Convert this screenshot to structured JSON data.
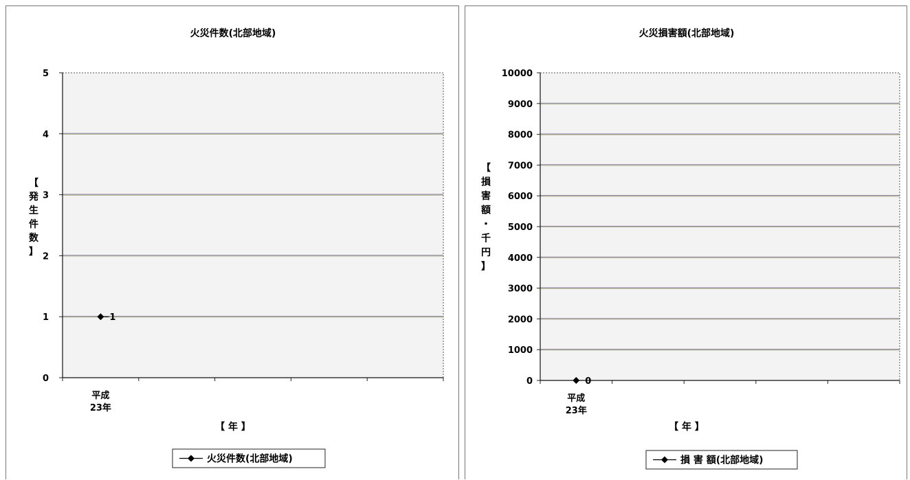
{
  "chart_data": [
    {
      "type": "line",
      "title": "火災件数(北部地域)",
      "ylabel_chars": [
        "【",
        "発",
        "生",
        "件",
        "数",
        "】"
      ],
      "xlabel": "【 年 】",
      "categories": [
        "平成\n23年"
      ],
      "ylim": [
        0,
        5
      ],
      "yticks": [
        0,
        1,
        2,
        3,
        4,
        5
      ],
      "grid": true,
      "legend_position": "bottom",
      "series": [
        {
          "name": "火災件数(北部地域)",
          "values": [
            1
          ],
          "data_labels": [
            "1"
          ],
          "color": "#000000"
        }
      ]
    },
    {
      "type": "line",
      "title": "火災損害額(北部地域)",
      "ylabel_chars": [
        "【",
        "損",
        "害",
        "額",
        "・",
        "千",
        "円",
        "】"
      ],
      "xlabel": "【 年 】",
      "categories": [
        "平成\n23年"
      ],
      "ylim": [
        0,
        10000
      ],
      "yticks": [
        0,
        1000,
        2000,
        3000,
        4000,
        5000,
        6000,
        7000,
        8000,
        9000,
        10000
      ],
      "grid": true,
      "legend_position": "bottom",
      "series": [
        {
          "name": "損 害 額(北部地域)",
          "values": [
            0
          ],
          "data_labels": [
            "0"
          ],
          "color": "#000000"
        }
      ]
    }
  ]
}
